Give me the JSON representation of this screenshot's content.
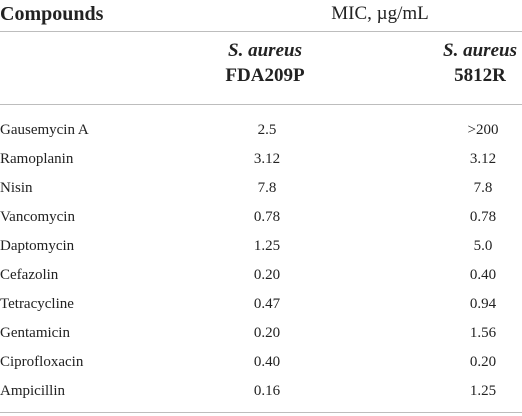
{
  "table": {
    "header": {
      "compounds_label": "Compounds",
      "mic_label": "MIC, µg/mL",
      "strains": [
        {
          "species": "S. aureus",
          "strain": "FDA209P"
        },
        {
          "species": "S. aureus",
          "strain": "5812R"
        }
      ]
    },
    "rows": [
      {
        "compound": "Gausemycin A",
        "v1": "2.5",
        "v2": ">200"
      },
      {
        "compound": "Ramoplanin",
        "v1": "3.12",
        "v2": "3.12"
      },
      {
        "compound": "Nisin",
        "v1": "7.8",
        "v2": "7.8"
      },
      {
        "compound": "Vancomycin",
        "v1": "0.78",
        "v2": "0.78"
      },
      {
        "compound": "Daptomycin",
        "v1": "1.25",
        "v2": "5.0"
      },
      {
        "compound": "Cefazolin",
        "v1": "0.20",
        "v2": "0.40"
      },
      {
        "compound": "Tetracycline",
        "v1": "0.47",
        "v2": "0.94"
      },
      {
        "compound": "Gentamicin",
        "v1": "0.20",
        "v2": "1.56"
      },
      {
        "compound": "Ciprofloxacin",
        "v1": "0.40",
        "v2": "0.20"
      },
      {
        "compound": "Ampicillin",
        "v1": "0.16",
        "v2": "1.25"
      }
    ]
  }
}
